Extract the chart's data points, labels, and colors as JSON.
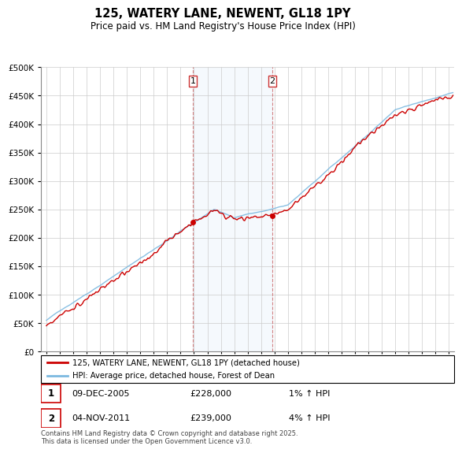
{
  "title": "125, WATERY LANE, NEWENT, GL18 1PY",
  "subtitle": "Price paid vs. HM Land Registry's House Price Index (HPI)",
  "legend_line1": "125, WATERY LANE, NEWENT, GL18 1PY (detached house)",
  "legend_line2": "HPI: Average price, detached house, Forest of Dean",
  "annotation1_date": "09-DEC-2005",
  "annotation1_price": "£228,000",
  "annotation1_hpi": "1% ↑ HPI",
  "annotation2_date": "04-NOV-2011",
  "annotation2_price": "£239,000",
  "annotation2_hpi": "4% ↑ HPI",
  "footer": "Contains HM Land Registry data © Crown copyright and database right 2025.\nThis data is licensed under the Open Government Licence v3.0.",
  "sale1_year": 2005.92,
  "sale1_value": 228000,
  "sale2_year": 2011.84,
  "sale2_value": 239000,
  "hpi_color": "#7cb9e0",
  "price_color": "#cc0000",
  "shade_color": "#ddeeff",
  "ylim_min": 0,
  "ylim_max": 500000,
  "xlim_min": 1994.6,
  "xlim_max": 2025.4,
  "background_color": "#ffffff",
  "grid_color": "#cccccc"
}
